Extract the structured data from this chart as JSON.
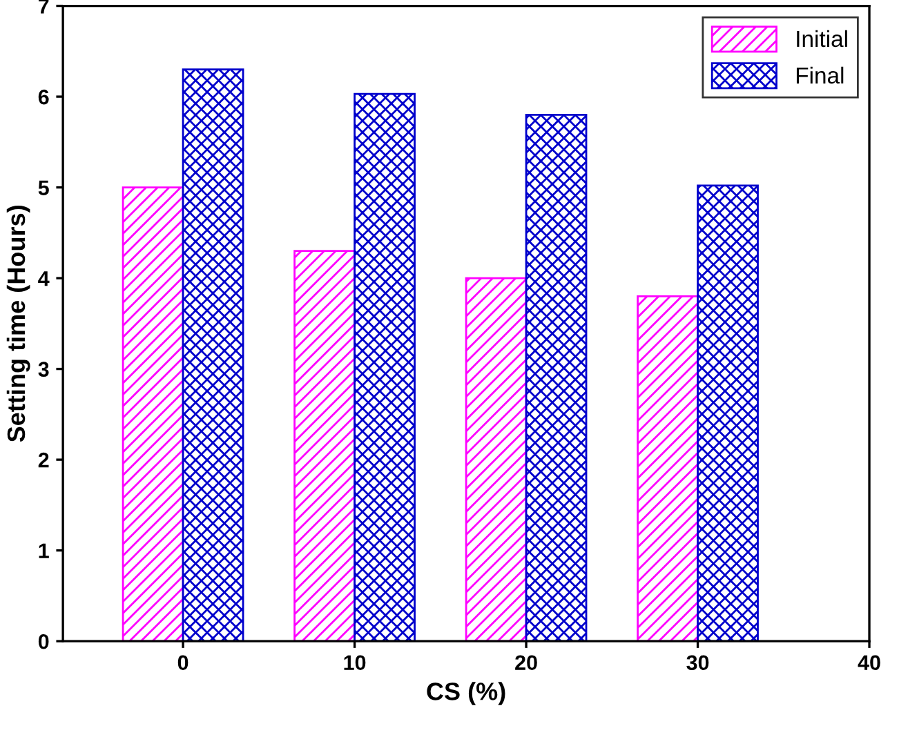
{
  "chart_data": {
    "type": "bar",
    "xlabel": "CS (%)",
    "ylabel": "Setting time (Hours)",
    "x": [
      0,
      10,
      20,
      30
    ],
    "series": [
      {
        "name": "Initial",
        "color": "#ff00ff",
        "values": [
          5.0,
          4.3,
          4.0,
          3.8
        ]
      },
      {
        "name": "Final",
        "color": "#0000cc",
        "values": [
          6.3,
          6.03,
          5.8,
          5.02
        ]
      }
    ],
    "xlim": [
      -7,
      40
    ],
    "xticks": [
      0,
      10,
      20,
      30,
      40
    ],
    "ylim": [
      0,
      7
    ],
    "yticks": [
      0,
      1,
      2,
      3,
      4,
      5,
      6,
      7
    ],
    "grid": false,
    "legend": "top right"
  }
}
